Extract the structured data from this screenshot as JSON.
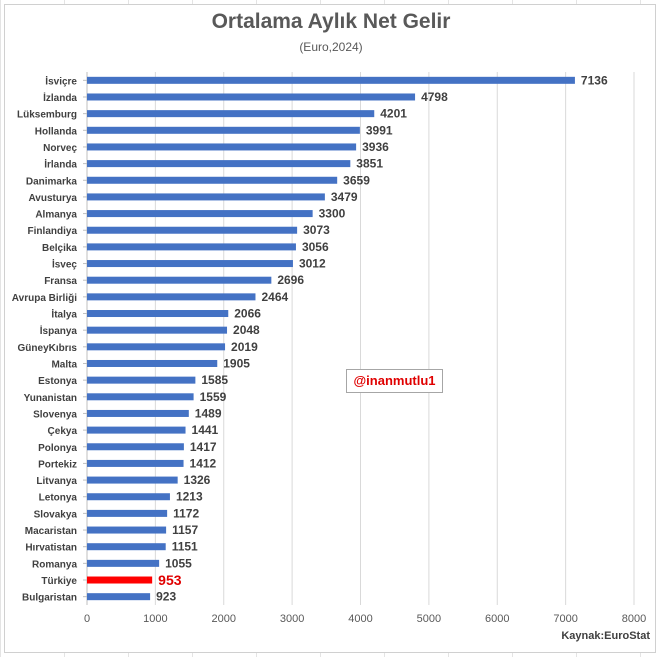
{
  "chart_data": {
    "type": "bar",
    "orientation": "horizontal",
    "title": "Ortalama Aylık Net Gelir",
    "subtitle": "(Euro,2024)",
    "xlim": [
      0,
      8000
    ],
    "xticks": [
      "0",
      "1000",
      "2000",
      "3000",
      "4000",
      "5000",
      "6000",
      "7000",
      "8000"
    ],
    "categories": [
      "İsviçre",
      "İzlanda",
      "Lüksemburg",
      "Hollanda",
      "Norveç",
      "İrlanda",
      "Danimarka",
      "Avusturya",
      "Almanya",
      "Finlandiya",
      "Belçika",
      "İsveç",
      "Fransa",
      "Avrupa Birliği",
      "İtalya",
      "İspanya",
      "GüneyKıbrıs",
      "Malta",
      "Estonya",
      "Yunanistan",
      "Slovenya",
      "Çekya",
      "Polonya",
      "Portekiz",
      "Litvanya",
      "Letonya",
      "Slovakya",
      "Macaristan",
      "Hırvatistan",
      "Romanya",
      "Türkiye",
      "Bulgaristan"
    ],
    "values": [
      7136,
      4798,
      4201,
      3991,
      3936,
      3851,
      3659,
      3479,
      3300,
      3073,
      3056,
      3012,
      2696,
      2464,
      2066,
      2048,
      2019,
      1905,
      1585,
      1559,
      1489,
      1441,
      1417,
      1412,
      1326,
      1213,
      1172,
      1157,
      1151,
      1055,
      953,
      923
    ],
    "highlight": "Türkiye",
    "colors": {
      "bar": "#4472c4",
      "highlight": "#ff0000",
      "label": "#404040",
      "highlight_label": "#e00000"
    },
    "grid": "vertical",
    "legend": "none"
  },
  "source_text": "Kaynak:EuroStat",
  "watermark_text": "@inanmutlu1"
}
